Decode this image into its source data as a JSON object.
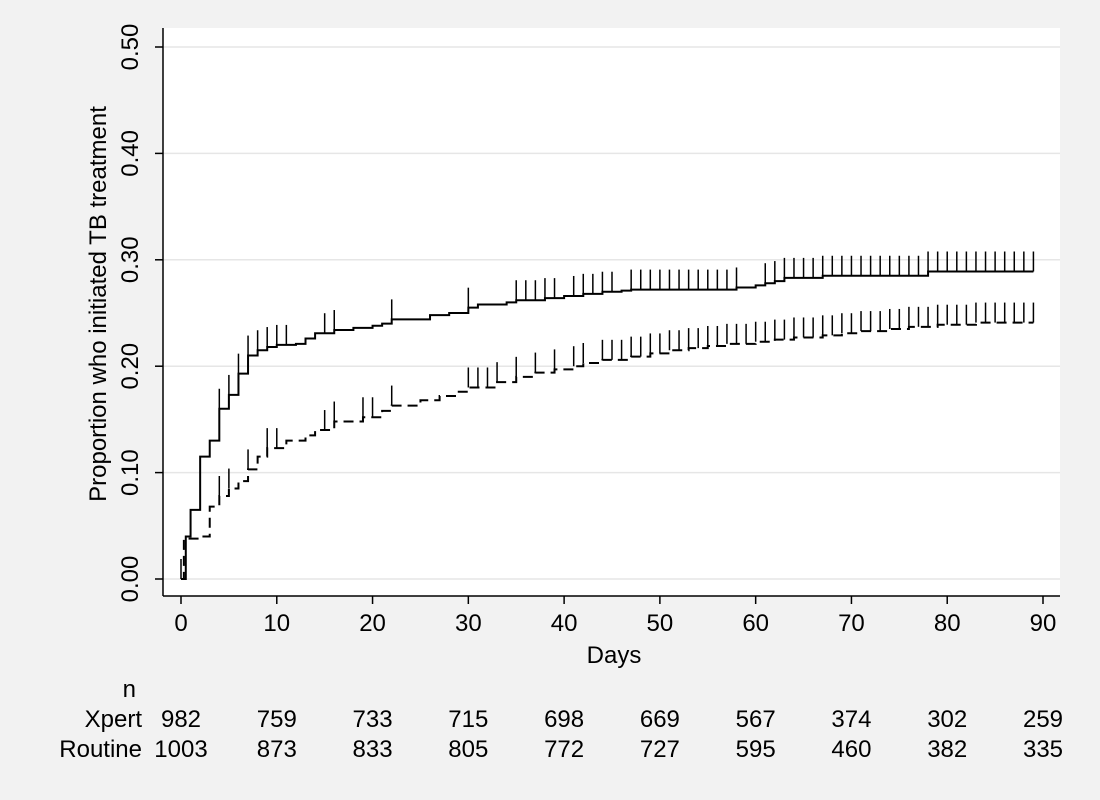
{
  "chart_data": {
    "type": "line",
    "step": true,
    "xlabel": "Days",
    "ylabel": "Proportion who initiated TB treatment",
    "xlim": [
      0,
      90
    ],
    "ylim": [
      0,
      0.5
    ],
    "xticks": [
      0,
      10,
      20,
      30,
      40,
      50,
      60,
      70,
      80,
      90
    ],
    "yticks": [
      0,
      0.1,
      0.2,
      0.3,
      0.4,
      0.5
    ],
    "ytick_labels": [
      "0.00",
      "0.10",
      "0.20",
      "0.30",
      "0.40",
      "0.50"
    ],
    "grid": "horizontal",
    "series": [
      {
        "style": "solid",
        "color": "#000000",
        "x": [
          0,
          0.5,
          1,
          2,
          3,
          4,
          5,
          6,
          7,
          8,
          9,
          10,
          12,
          13,
          14,
          16,
          18,
          20,
          21,
          22,
          26,
          28,
          30,
          31,
          34,
          35,
          38,
          40,
          42,
          44,
          46,
          47,
          58,
          60,
          61,
          62,
          63,
          67,
          78,
          89
        ],
        "y": [
          0,
          0.04,
          0.065,
          0.115,
          0.13,
          0.16,
          0.173,
          0.193,
          0.21,
          0.215,
          0.218,
          0.22,
          0.221,
          0.226,
          0.231,
          0.234,
          0.236,
          0.238,
          0.24,
          0.244,
          0.248,
          0.25,
          0.255,
          0.258,
          0.26,
          0.262,
          0.264,
          0.266,
          0.268,
          0.27,
          0.271,
          0.272,
          0.274,
          0.276,
          0.278,
          0.28,
          0.283,
          0.285,
          0.289,
          0.289
        ],
        "censor_x": [
          0,
          4,
          5,
          6,
          7,
          8,
          9,
          10,
          11,
          15,
          16,
          22,
          30,
          35,
          36,
          37,
          38,
          39,
          41,
          42,
          43,
          44,
          45,
          47,
          48,
          49,
          50,
          51,
          52,
          53,
          54,
          55,
          56,
          57,
          58,
          61,
          62,
          63,
          64,
          65,
          66,
          67,
          68,
          69,
          70,
          71,
          72,
          73,
          74,
          75,
          76,
          77,
          78,
          79,
          80,
          81,
          82,
          83,
          84,
          85,
          86,
          87,
          88,
          89
        ]
      },
      {
        "style": "dashed",
        "color": "#000000",
        "x": [
          0,
          0.3,
          2,
          3,
          4,
          5,
          6,
          7,
          8,
          9,
          11,
          13,
          14,
          16,
          19,
          21,
          22,
          25,
          27,
          29,
          30,
          33,
          35,
          37,
          39,
          41,
          42,
          44,
          47,
          49,
          51,
          53,
          55,
          57,
          60,
          62,
          64,
          67,
          69,
          71,
          74,
          76,
          79,
          83,
          89
        ],
        "y": [
          0,
          0.038,
          0.04,
          0.068,
          0.078,
          0.085,
          0.092,
          0.103,
          0.115,
          0.123,
          0.13,
          0.135,
          0.14,
          0.148,
          0.152,
          0.158,
          0.163,
          0.168,
          0.172,
          0.176,
          0.18,
          0.185,
          0.19,
          0.194,
          0.197,
          0.2,
          0.203,
          0.206,
          0.209,
          0.212,
          0.215,
          0.217,
          0.219,
          0.221,
          0.223,
          0.225,
          0.227,
          0.229,
          0.231,
          0.233,
          0.235,
          0.237,
          0.239,
          0.241,
          0.241
        ],
        "censor_x": [
          4,
          5,
          7,
          9,
          10,
          15,
          16,
          19,
          20,
          22,
          30,
          31,
          32,
          33,
          35,
          37,
          39,
          41,
          42,
          44,
          45,
          46,
          47,
          48,
          49,
          50,
          51,
          52,
          53,
          54,
          55,
          56,
          57,
          58,
          59,
          60,
          61,
          62,
          63,
          64,
          65,
          66,
          67,
          68,
          69,
          70,
          71,
          72,
          73,
          74,
          75,
          76,
          77,
          78,
          79,
          80,
          81,
          82,
          83,
          84,
          85,
          86,
          87,
          88,
          89
        ]
      }
    ]
  },
  "risk_table": {
    "header": "n",
    "rows": [
      {
        "label": "Xpert",
        "values": [
          "982",
          "759",
          "733",
          "715",
          "698",
          "669",
          "567",
          "374",
          "302",
          "259"
        ]
      },
      {
        "label": "Routine",
        "values": [
          "1003",
          "873",
          "833",
          "805",
          "772",
          "727",
          "595",
          "460",
          "382",
          "335"
        ]
      }
    ]
  }
}
